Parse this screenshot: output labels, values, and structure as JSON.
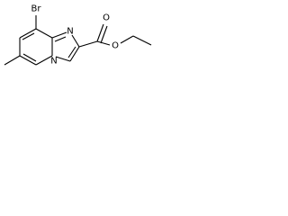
{
  "atoms": [
    {
      "label": "Br"
    },
    {
      "label": "N"
    },
    {
      "label": "N"
    },
    {
      "label": "O"
    },
    {
      "label": "O"
    }
  ]
}
